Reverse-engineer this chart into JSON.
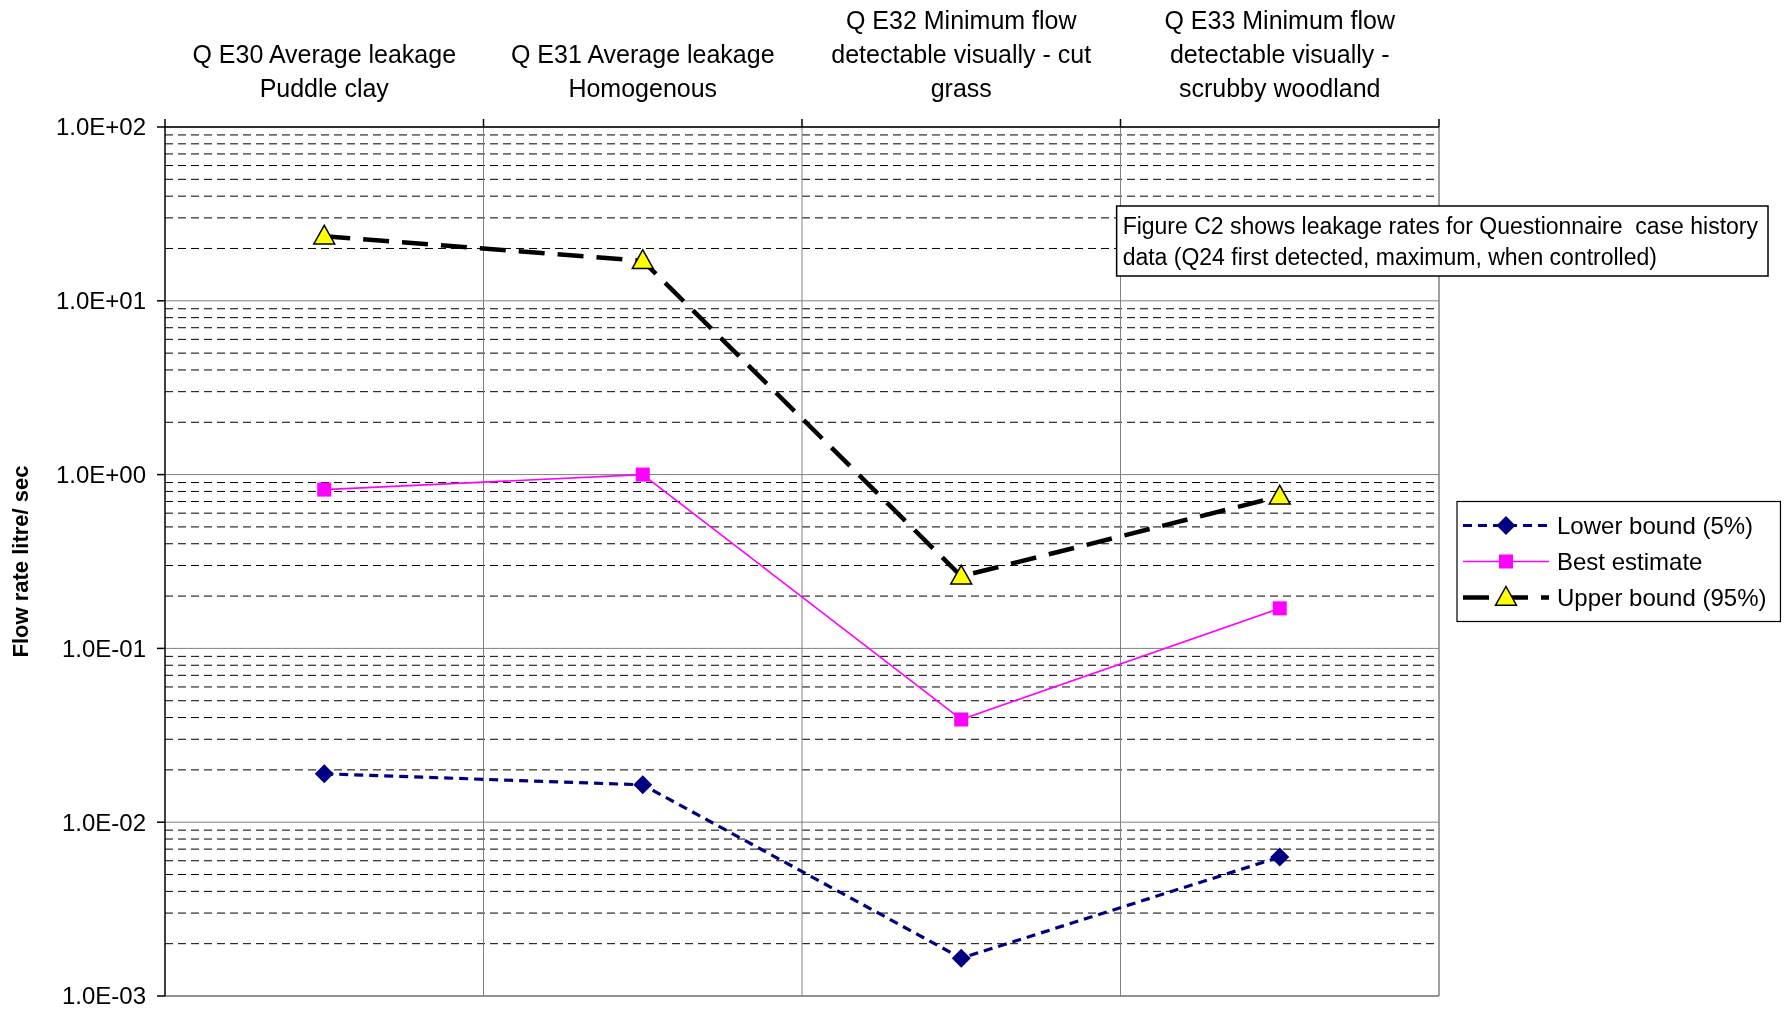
{
  "chart_data": {
    "type": "line",
    "categories": [
      "Q E30 Average leakage Puddle clay",
      "Q E31 Average leakage Homogenous",
      "Q E32 Minimum flow detectable visually - cut grass",
      "Q E33 Minimum flow detectable visually - scrubby woodland"
    ],
    "ylabel": "Flow rate litre/ sec",
    "log": true,
    "ylim": [
      0.001,
      100
    ],
    "yticks": [
      {
        "value": 0.001,
        "label": "1.0E-03"
      },
      {
        "value": 0.002,
        "label": null
      },
      {
        "value": 0.003,
        "label": null
      },
      {
        "value": 0.004,
        "label": null
      },
      {
        "value": 0.005,
        "label": null
      },
      {
        "value": 0.006,
        "label": null
      },
      {
        "value": 0.007,
        "label": null
      },
      {
        "value": 0.008,
        "label": null
      },
      {
        "value": 0.009,
        "label": null
      },
      {
        "value": 0.01,
        "label": "1.0E-02"
      },
      {
        "value": 0.02,
        "label": null
      },
      {
        "value": 0.03,
        "label": null
      },
      {
        "value": 0.04,
        "label": null
      },
      {
        "value": 0.05,
        "label": null
      },
      {
        "value": 0.06,
        "label": null
      },
      {
        "value": 0.07,
        "label": null
      },
      {
        "value": 0.08,
        "label": null
      },
      {
        "value": 0.09,
        "label": null
      },
      {
        "value": 0.1,
        "label": "1.0E-01"
      },
      {
        "value": 0.2,
        "label": null
      },
      {
        "value": 0.3,
        "label": null
      },
      {
        "value": 0.4,
        "label": null
      },
      {
        "value": 0.5,
        "label": null
      },
      {
        "value": 0.6,
        "label": null
      },
      {
        "value": 0.7,
        "label": null
      },
      {
        "value": 0.8,
        "label": null
      },
      {
        "value": 0.9,
        "label": null
      },
      {
        "value": 1,
        "label": "1.0E+00"
      },
      {
        "value": 2,
        "label": null
      },
      {
        "value": 3,
        "label": null
      },
      {
        "value": 4,
        "label": null
      },
      {
        "value": 5,
        "label": null
      },
      {
        "value": 6,
        "label": null
      },
      {
        "value": 7,
        "label": null
      },
      {
        "value": 8,
        "label": null
      },
      {
        "value": 9,
        "label": null
      },
      {
        "value": 10,
        "label": "1.0E+01"
      },
      {
        "value": 20,
        "label": null
      },
      {
        "value": 30,
        "label": null
      },
      {
        "value": 40,
        "label": null
      },
      {
        "value": 50,
        "label": null
      },
      {
        "value": 60,
        "label": null
      },
      {
        "value": 70,
        "label": null
      },
      {
        "value": 80,
        "label": null
      },
      {
        "value": 90,
        "label": null
      },
      {
        "value": 100,
        "label": "1.0E+02"
      }
    ],
    "grid": true,
    "legend": "right",
    "series": [
      {
        "name": "Lower bound (5%)",
        "color": "#000080",
        "values": [
          0.019,
          0.0164,
          0.00165,
          0.0063
        ],
        "marker": "diamond",
        "line_style": "dashed"
      },
      {
        "name": "Best estimate",
        "color": "#ff00ff",
        "values": [
          0.82,
          1,
          0.039,
          0.17
        ],
        "marker": "square",
        "line_style": "solid"
      },
      {
        "name": "Upper bound (95%)",
        "color": "#000000",
        "colors": [
          "#ffff00",
          "#ffff00",
          "#ffff00",
          "#ffff00"
        ],
        "values": [
          23.5,
          17,
          0.26,
          0.75
        ],
        "marker": "triangle",
        "line_style": "dashed"
      }
    ],
    "annotations": [
      "Figure C2 shows leakage rates for Questionnaire  case history data (Q24 first detected, maximum, when controlled)"
    ]
  }
}
